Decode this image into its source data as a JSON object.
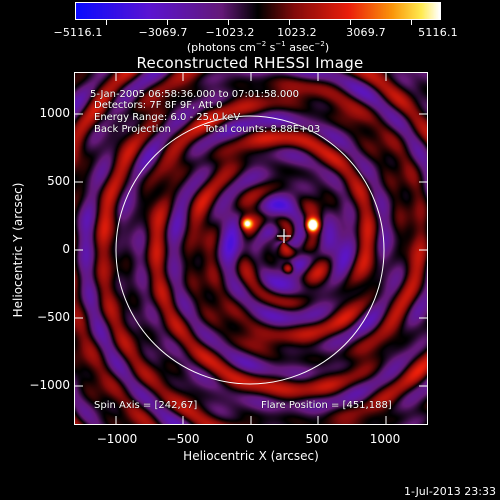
{
  "colorbar": {
    "tick_labels": [
      "−5116.1",
      "−3069.7",
      "−1023.2",
      "1023.2",
      "3069.7",
      "5116.1"
    ],
    "units_text": "(photons cm",
    "units_exp1": "−2",
    "units_mid": " s",
    "units_exp2": "−1",
    "units_end": " asec",
    "units_exp3": "−2",
    "units_close": ")"
  },
  "plot": {
    "title": "Reconstructed RHESSI Image",
    "info_line1": "5-Jan-2005 06:58:36.000 to 07:01:58.000",
    "info_line2": "Detectors: 7F 8F 9F, Att 0",
    "info_line3": "Energy Range: 6.0 - 25.0 keV",
    "info_line4_left": "Back Projection",
    "info_line4_right": "Total counts: 8.88E+03",
    "spin_axis": "Spin Axis = [242,67]",
    "flare_position": "Flare Position = [451,188]",
    "x_axis_label": "Heliocentric X (arcsec)",
    "y_axis_label": "Heliocentric Y (arcsec)",
    "x_ticks": [
      "−1000",
      "−500",
      "0",
      "500",
      "1000"
    ],
    "y_ticks": [
      "1000",
      "500",
      "0",
      "−500",
      "−1000"
    ]
  },
  "timestamp": "1-Jul-2013 23:33"
}
